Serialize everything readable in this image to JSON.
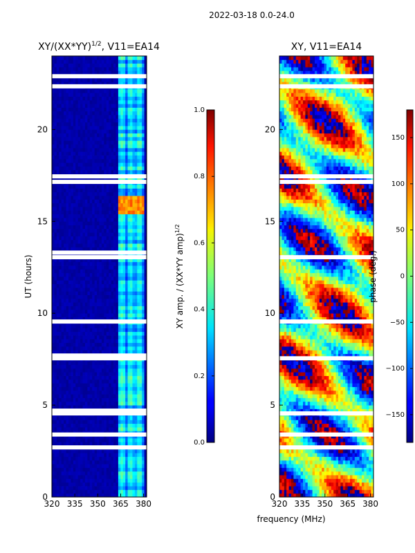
{
  "figure": {
    "suptitle": "2022-03-18 0.0-24.0",
    "shared_xlabel": "frequency (MHz)",
    "shared_ylabel": "UT (hours)"
  },
  "chart_data": [
    {
      "type": "heatmap",
      "title": "XY/(XX*YY)",
      "title_exponent": "1/2",
      "title_suffix": ", V11=EA14",
      "xlabel": "frequency (MHz)",
      "ylabel": "UT (hours)",
      "xlim": [
        320,
        382
      ],
      "ylim": [
        0,
        24
      ],
      "xticks": [
        "320",
        "335",
        "350",
        "365",
        "380"
      ],
      "xtick_values": [
        320,
        335,
        350,
        365,
        380
      ],
      "yticks": [
        "0",
        "5",
        "10",
        "15",
        "20"
      ],
      "ytick_values": [
        0,
        5,
        10,
        15,
        20
      ],
      "colorbar": {
        "label": "XY amp. / (XX*YY amp)",
        "label_exponent": "1/2",
        "range": [
          0.0,
          1.0
        ],
        "ticks": [
          "0.0",
          "0.2",
          "0.4",
          "0.6",
          "0.8",
          "1.0"
        ],
        "tick_values": [
          0.0,
          0.2,
          0.4,
          0.6,
          0.8,
          1.0
        ],
        "colormap": "jet"
      },
      "blank_rows_ut": [
        2.7,
        3.4,
        4.55,
        4.7,
        7.55,
        7.7,
        9.55,
        13.05,
        13.3,
        17.15,
        17.45,
        22.35,
        22.9
      ],
      "bright_band_mhz": [
        363,
        380
      ],
      "peak_region": {
        "ut": [
          15.5,
          16.3
        ],
        "freq_mhz": [
          363,
          380
        ],
        "value": 0.8
      }
    },
    {
      "type": "heatmap",
      "title": "XY, V11=EA14",
      "xlabel": "frequency (MHz)",
      "ylabel": "UT (hours)",
      "xlim": [
        320,
        382
      ],
      "ylim": [
        0,
        24
      ],
      "xticks": [
        "320",
        "335",
        "350",
        "365",
        "380"
      ],
      "xtick_values": [
        320,
        335,
        350,
        365,
        380
      ],
      "yticks": [
        "0",
        "5",
        "10",
        "15",
        "20"
      ],
      "ytick_values": [
        0,
        5,
        10,
        15,
        20
      ],
      "colorbar": {
        "label": "phase (deg.)",
        "range": [
          -180,
          180
        ],
        "ticks": [
          "−150",
          "−100",
          "−50",
          "0",
          "50",
          "100",
          "150"
        ],
        "tick_values": [
          -150,
          -100,
          -50,
          0,
          50,
          100,
          150
        ],
        "colormap": "jet"
      },
      "blank_rows_ut": [
        2.7,
        3.4,
        4.55,
        7.55,
        9.55,
        13.05,
        17.15,
        17.45,
        22.35,
        22.9
      ]
    }
  ]
}
